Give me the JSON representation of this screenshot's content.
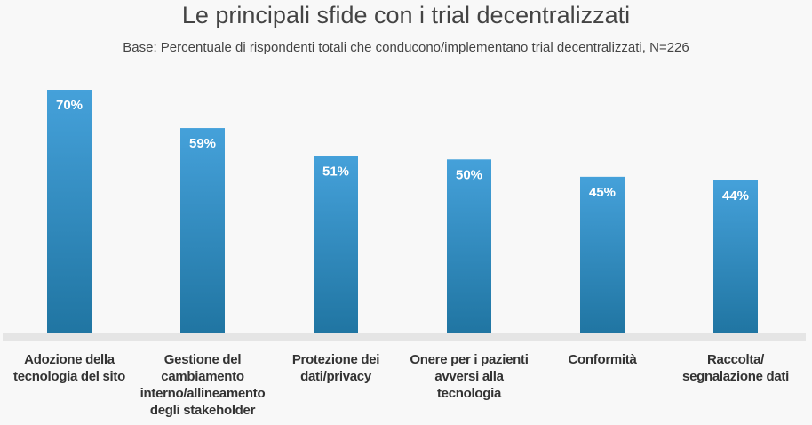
{
  "chart_data": {
    "type": "bar",
    "title": "Le principali sfide con i trial decentralizzati",
    "subtitle": "Base: Percentuale di rispondenti totali che conducono/implementano trial decentralizzati, N=226",
    "categories": [
      "Adozione della tecnologia del sito",
      "Gestione del cambiamento interno/allineamento degli stakeholder",
      "Protezione dei dati/privacy",
      "Onere per i pazienti avversi alla tecnologia",
      "Conformità",
      "Raccolta/ segnalazione dati"
    ],
    "values": [
      70,
      59,
      51,
      50,
      45,
      44
    ],
    "data_labels": [
      "70%",
      "59%",
      "51%",
      "50%",
      "45%",
      "44%"
    ],
    "unit": "%",
    "ylim": [
      0,
      70
    ],
    "grid": false,
    "colors": {
      "bar_top": "#45a1da",
      "bar_bottom": "#2075a2",
      "baseline": "#e5e5e5"
    }
  }
}
